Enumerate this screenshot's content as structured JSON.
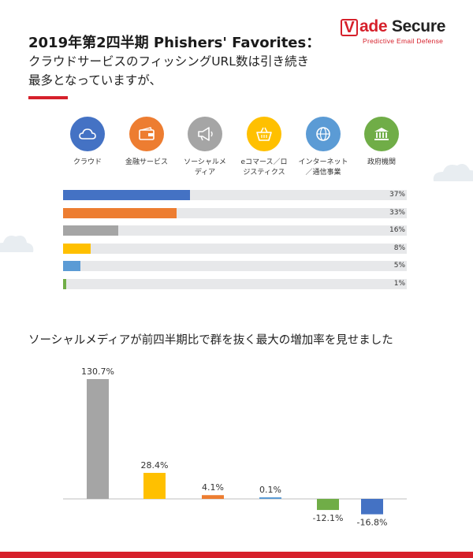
{
  "header": {
    "title_line1": "2019年第2四半期 Phishers' Favorites：",
    "title_line2": "クラウドサービスのフィッシングURL数は引き続き",
    "title_line3": "最多となっていますが、"
  },
  "logo": {
    "name_first": "ade",
    "name_second": "Secure",
    "tagline": "Predictive Email Defense",
    "box_letter": "V"
  },
  "colors": {
    "accent": "#d6202b",
    "cloud": "#4472c4",
    "finance": "#ed7d31",
    "social": "#a5a5a5",
    "ecommerce": "#ffc000",
    "internet": "#5b9bd5",
    "government": "#70ad47",
    "track": "#e7e8ea"
  },
  "categories": [
    {
      "label": "クラウド",
      "icon": "cloud-icon"
    },
    {
      "label": "金融サービス",
      "icon": "wallet-icon"
    },
    {
      "label": "ソーシャルメ\nディア",
      "icon": "megaphone-icon"
    },
    {
      "label": "eコマース／ロ\nジスティクス",
      "icon": "basket-icon"
    },
    {
      "label": "インターネット\n／通信事業",
      "icon": "globe-icon"
    },
    {
      "label": "政府機関",
      "icon": "government-building-icon"
    }
  ],
  "section2": {
    "title": "ソーシャルメディアが前四半期比で群を抜く最大の増加率を見せました"
  },
  "chart_data": [
    {
      "type": "bar",
      "orientation": "horizontal",
      "categories": [
        "クラウド",
        "金融サービス",
        "ソーシャルメディア",
        "eコマース／ロジスティクス",
        "インターネット／通信事業",
        "政府機関"
      ],
      "values": [
        37,
        33,
        16,
        8,
        5,
        1
      ],
      "value_labels": [
        "37%",
        "33%",
        "16%",
        "8%",
        "5%",
        "1%"
      ],
      "xlim": [
        0,
        100
      ],
      "grid": false,
      "legend": "none"
    },
    {
      "type": "bar",
      "orientation": "vertical",
      "categories": [
        "ソーシャルメディア",
        "eコマース／ロジスティクス",
        "金融サービス",
        "インターネット／通信事業",
        "政府機関",
        "クラウド"
      ],
      "values": [
        130.7,
        28.4,
        4.1,
        0.1,
        -12.1,
        -16.8
      ],
      "value_labels": [
        "130.7%",
        "28.4%",
        "4.1%",
        "0.1%",
        "-12.1%",
        "-16.8%"
      ],
      "title": "ソーシャルメディアが前四半期比で群を抜く最大の増加率を見せました",
      "grid": false,
      "legend": "none"
    }
  ]
}
